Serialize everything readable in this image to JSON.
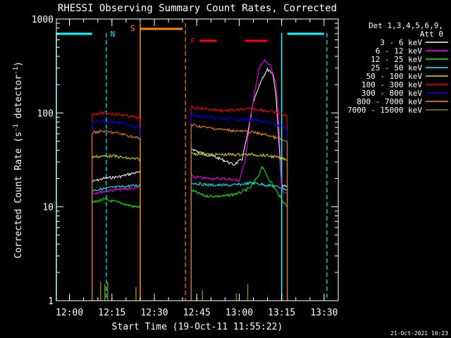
{
  "chart_data": {
    "type": "line",
    "title": "RHESSI Observing Summary Count Rates, Corrected",
    "xlabel": "Start Time (19-Oct-11 11:55:22)",
    "ylabel": "Corrected Count Rate (s⁻¹ detector⁻¹)",
    "ylabel_parts": [
      "Corrected Count Rate (s",
      "-1",
      " detector",
      "-1",
      ")"
    ],
    "x_scale": "time",
    "y_scale": "log",
    "xlim": [
      "11:55:22",
      "13:35:00"
    ],
    "ylim": [
      1,
      1000
    ],
    "x_ticks": [
      "12:00",
      "12:15",
      "12:30",
      "12:45",
      "13:00",
      "13:15",
      "13:30"
    ],
    "y_ticks": [
      {
        "value": 1,
        "label": "1"
      },
      {
        "value": 10,
        "label": "10"
      },
      {
        "value": 100,
        "label": "100"
      },
      {
        "value": 1000,
        "label": "1000"
      }
    ],
    "legend": {
      "position": "right",
      "header": [
        "Det 1,3,4,5,6,9,",
        "Att 0"
      ],
      "entries": [
        {
          "label": "3 - 6 keV",
          "color": "#ffffff"
        },
        {
          "label": "6 - 12 keV",
          "color": "#ff00ff"
        },
        {
          "label": "12 - 25 keV",
          "color": "#00ff00"
        },
        {
          "label": "25 - 50 keV",
          "color": "#00ffff"
        },
        {
          "label": "50 - 100 keV",
          "color": "#e0e000"
        },
        {
          "label": "100 - 300 keV",
          "color": "#ff0000"
        },
        {
          "label": "300 - 800 keV",
          "color": "#0000ff"
        },
        {
          "label": "800 - 7000 keV",
          "color": "#ff8c00"
        },
        {
          "label": "7000 - 15000 keV",
          "color": "#7a8a00"
        }
      ]
    },
    "annotations": {
      "night_color": "#00ffff",
      "saa_color": "#ff8c00",
      "flare_color": "#ff0000",
      "night_label": "N",
      "saa_label": "S",
      "flare_label": "F",
      "night_intervals": [
        [
          "11:55:22",
          "12:08:00"
        ],
        [
          "13:17:00",
          "13:30:00"
        ]
      ],
      "night_markers_dashed": [
        "12:13:00",
        "13:31:00"
      ],
      "night_edges_solid": [
        "11:55:22",
        "13:15:00"
      ],
      "saa_intervals": [
        [
          "12:25:00",
          "12:40:00"
        ]
      ],
      "saa_edge_solid": "12:25:00",
      "saa_edge_dashed": "12:41:00",
      "flare_intervals": [
        [
          "12:46:00",
          "12:52:00"
        ],
        [
          "13:02:00",
          "13:10:00"
        ]
      ]
    },
    "series": [
      {
        "name": "3 - 6 keV",
        "color": "#ffffff",
        "segments": [
          [
            [
              "12:08",
              "18.5"
            ],
            [
              "12:12",
              "20"
            ],
            [
              "12:18",
              "21"
            ],
            [
              "12:23",
              "23"
            ],
            [
              "12:25",
              "23"
            ]
          ],
          [
            [
              "12:43",
              "42"
            ],
            [
              "12:46",
              "38"
            ],
            [
              "12:50",
              "35"
            ],
            [
              "12:55",
              "31"
            ],
            [
              "12:58",
              "28"
            ],
            [
              "13:01",
              "32"
            ],
            [
              "13:03",
              "60"
            ],
            [
              "13:05",
              "130"
            ],
            [
              "13:08",
              "230"
            ],
            [
              "13:10",
              "290"
            ],
            [
              "13:12",
              "250"
            ],
            [
              "13:13",
              "150"
            ],
            [
              "13:14",
              "50"
            ],
            [
              "13:15",
              "17"
            ],
            [
              "13:17",
              "17"
            ]
          ]
        ]
      },
      {
        "name": "6 - 12 keV",
        "color": "#ff00ff",
        "segments": [
          [
            [
              "12:08",
              "14"
            ],
            [
              "12:15",
              "15"
            ],
            [
              "12:20",
              "15.5"
            ],
            [
              "12:25",
              "16"
            ]
          ],
          [
            [
              "12:43",
              "21"
            ],
            [
              "12:48",
              "20"
            ],
            [
              "12:55",
              "20"
            ],
            [
              "13:00",
              "19"
            ],
            [
              "13:02",
              "30"
            ],
            [
              "13:04",
              "90"
            ],
            [
              "13:07",
              "300"
            ],
            [
              "13:09",
              "360"
            ],
            [
              "13:11",
              "320"
            ],
            [
              "13:13",
              "200"
            ],
            [
              "13:14",
              "80"
            ],
            [
              "13:15",
              "15"
            ],
            [
              "13:17",
              "14"
            ]
          ]
        ]
      },
      {
        "name": "12 - 25 keV",
        "color": "#00ff00",
        "segments": [
          [
            [
              "12:08",
              "11"
            ],
            [
              "12:12",
              "12"
            ],
            [
              "12:18",
              "11"
            ],
            [
              "12:23",
              "10"
            ],
            [
              "12:25",
              "10"
            ]
          ],
          [
            [
              "12:43",
              "15"
            ],
            [
              "12:48",
              "13"
            ],
            [
              "12:55",
              "13"
            ],
            [
              "13:00",
              "14"
            ],
            [
              "13:04",
              "16"
            ],
            [
              "13:07",
              "22"
            ],
            [
              "13:08",
              "27"
            ],
            [
              "13:10",
              "21"
            ],
            [
              "13:13",
              "15"
            ],
            [
              "13:15",
              "12"
            ],
            [
              "13:17",
              "10"
            ]
          ]
        ]
      },
      {
        "name": "25 - 50 keV",
        "color": "#00ffff",
        "segments": [
          [
            [
              "12:08",
              "15"
            ],
            [
              "12:15",
              "16"
            ],
            [
              "12:20",
              "16.5"
            ],
            [
              "12:25",
              "17"
            ]
          ],
          [
            [
              "12:43",
              "18"
            ],
            [
              "12:50",
              "17"
            ],
            [
              "12:58",
              "17"
            ],
            [
              "13:05",
              "18"
            ],
            [
              "13:10",
              "17"
            ],
            [
              "13:15",
              "16"
            ],
            [
              "13:17",
              "15"
            ]
          ]
        ]
      },
      {
        "name": "50 - 100 keV",
        "color": "#e0e000",
        "segments": [
          [
            [
              "12:08",
              "34"
            ],
            [
              "12:15",
              "35"
            ],
            [
              "12:20",
              "33"
            ],
            [
              "12:25",
              "32"
            ]
          ],
          [
            [
              "12:43",
              "37"
            ],
            [
              "12:50",
              "36"
            ],
            [
              "12:58",
              "36"
            ],
            [
              "13:05",
              "36"
            ],
            [
              "13:10",
              "35"
            ],
            [
              "13:15",
              "33"
            ],
            [
              "13:17",
              "32"
            ]
          ]
        ]
      },
      {
        "name": "100 - 300 keV",
        "color": "#ff0000",
        "segments": [
          [
            [
              "12:08",
              "97"
            ],
            [
              "12:12",
              "100"
            ],
            [
              "12:18",
              "96"
            ],
            [
              "12:23",
              "90"
            ],
            [
              "12:25",
              "88"
            ]
          ],
          [
            [
              "12:43",
              "115"
            ],
            [
              "12:48",
              "110"
            ],
            [
              "12:55",
              "106"
            ],
            [
              "13:00",
              "108"
            ],
            [
              "13:05",
              "110"
            ],
            [
              "13:10",
              "105"
            ],
            [
              "13:15",
              "98"
            ],
            [
              "13:17",
              "92"
            ]
          ]
        ]
      },
      {
        "name": "300 - 800 keV",
        "color": "#0000ff",
        "segments": [
          [
            [
              "12:08",
              "80"
            ],
            [
              "12:12",
              "82"
            ],
            [
              "12:18",
              "78"
            ],
            [
              "12:23",
              "72"
            ],
            [
              "12:25",
              "70"
            ]
          ],
          [
            [
              "12:43",
              "95"
            ],
            [
              "12:48",
              "90"
            ],
            [
              "12:55",
              "86"
            ],
            [
              "13:00",
              "86"
            ],
            [
              "13:05",
              "84"
            ],
            [
              "13:10",
              "80"
            ],
            [
              "13:15",
              "72"
            ],
            [
              "13:17",
              "66"
            ]
          ]
        ]
      },
      {
        "name": "800 - 7000 keV",
        "color": "#ff8c00",
        "segments": [
          [
            [
              "12:08",
              "62"
            ],
            [
              "12:12",
              "64"
            ],
            [
              "12:18",
              "60"
            ],
            [
              "12:23",
              "55"
            ],
            [
              "12:25",
              "53"
            ]
          ],
          [
            [
              "12:43",
              "75"
            ],
            [
              "12:48",
              "70"
            ],
            [
              "12:55",
              "66"
            ],
            [
              "13:00",
              "64"
            ],
            [
              "13:05",
              "62"
            ],
            [
              "13:10",
              "58"
            ],
            [
              "13:15",
              "52"
            ],
            [
              "13:17",
              "48"
            ]
          ]
        ]
      },
      {
        "name": "7000 - 15000 keV",
        "color": "#7a8a00",
        "spikes": [
          {
            "time": "12:11:00",
            "value": 1.6
          },
          {
            "time": "12:12:30",
            "value": 1.5
          },
          {
            "time": "12:13:30",
            "value": 1.6
          },
          {
            "time": "12:23:30",
            "value": 1.4
          },
          {
            "time": "12:47:00",
            "value": 1.3
          },
          {
            "time": "12:59:00",
            "value": 1.2
          },
          {
            "time": "13:03:00",
            "value": 1.5
          }
        ]
      }
    ]
  },
  "footer": {
    "timestamp": "21-Oct-2021 10:23"
  }
}
